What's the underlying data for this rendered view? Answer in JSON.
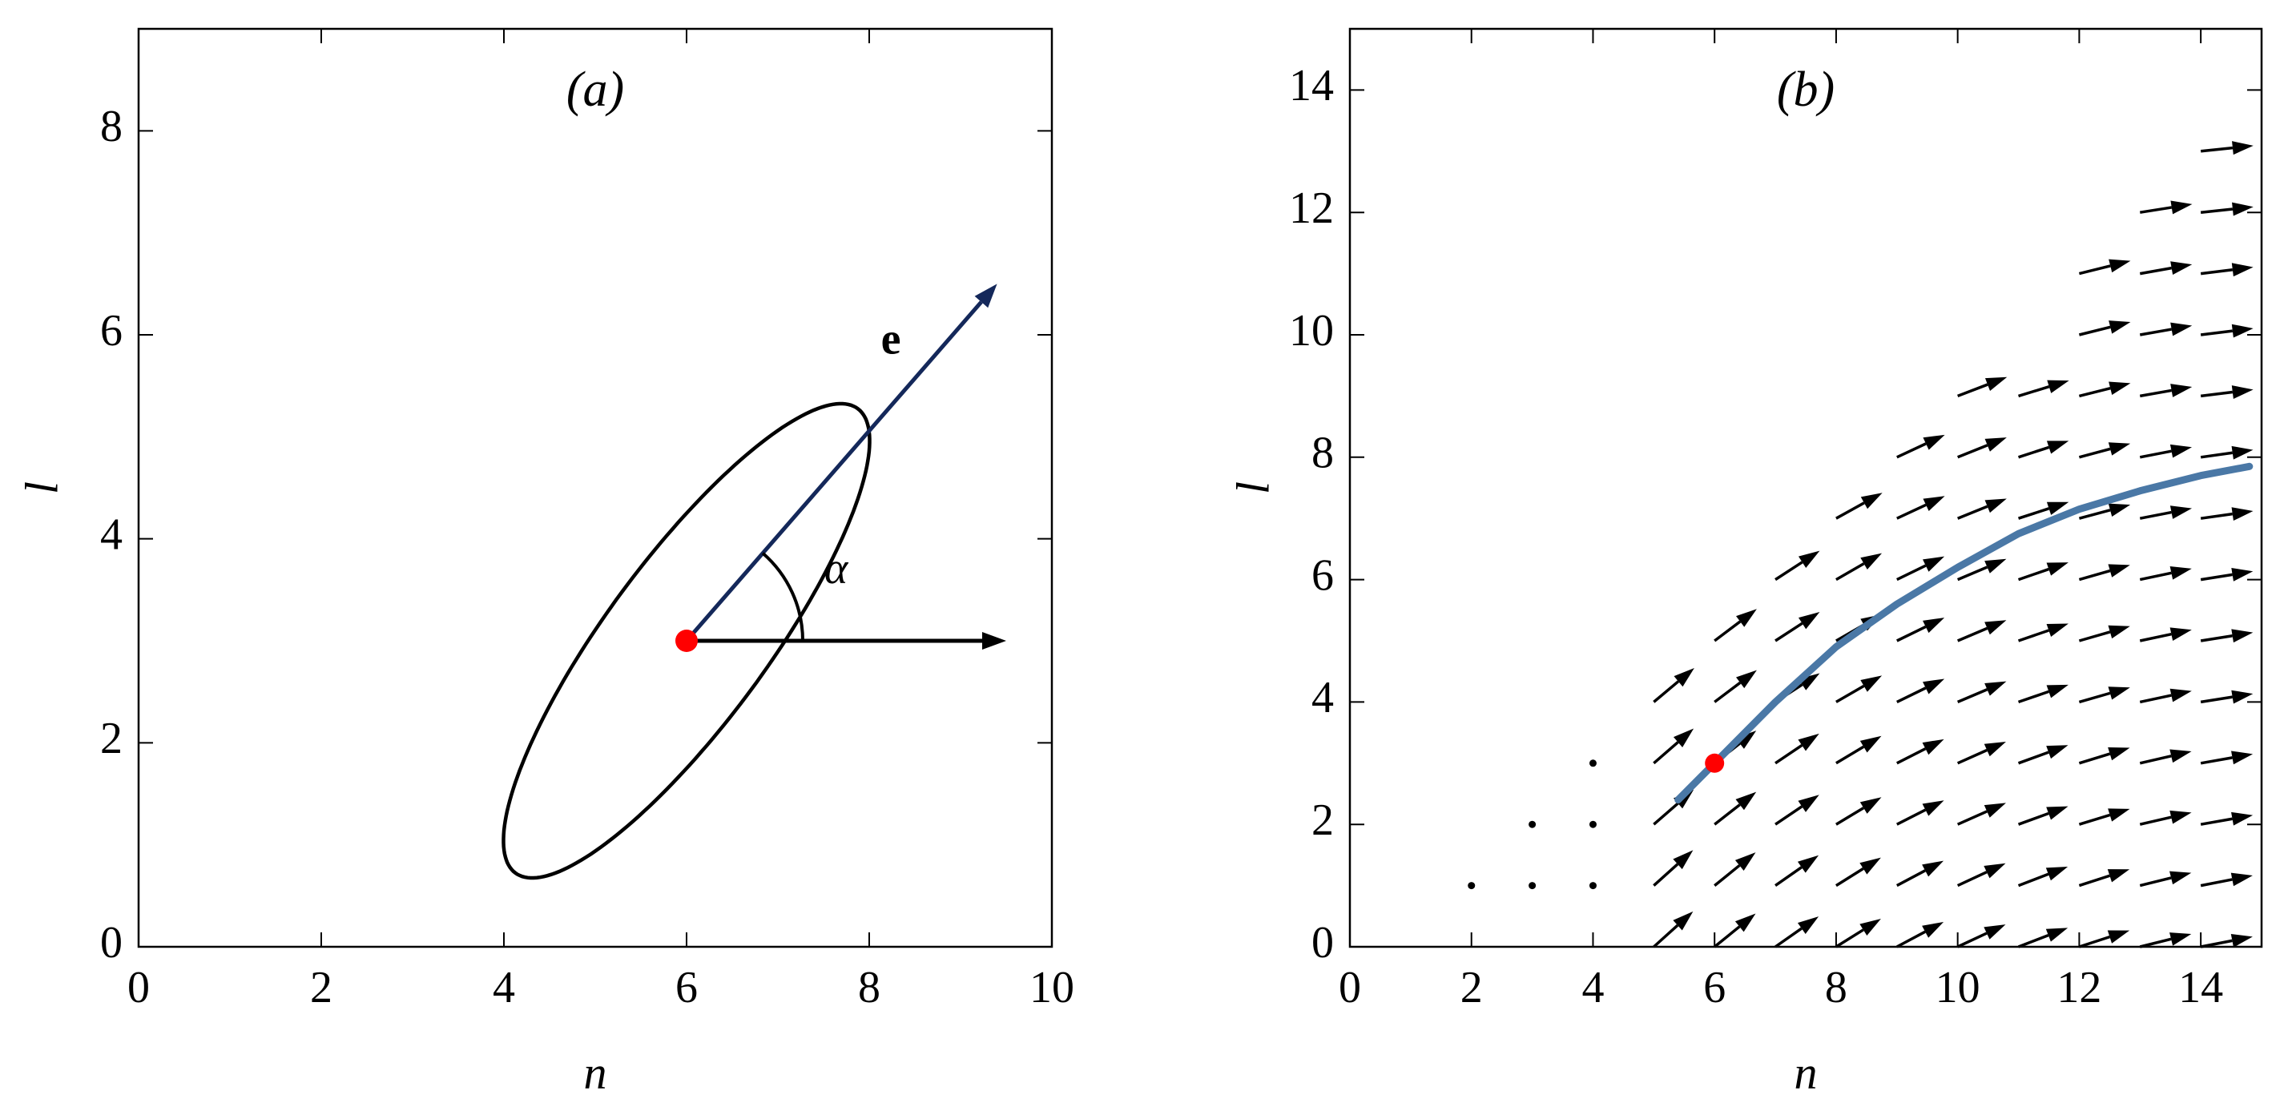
{
  "chart_data": [
    {
      "type": "ellipse",
      "title": "(a)",
      "x_label": "n",
      "y_label": "l",
      "xlim": [
        0,
        10
      ],
      "ylim": [
        0,
        9
      ],
      "xticks": [
        0,
        2,
        4,
        6,
        8,
        10
      ],
      "yticks": [
        0,
        2,
        4,
        6,
        8
      ],
      "ellipse": {
        "center": [
          6,
          3
        ],
        "semi_axes": [
          2.95,
          0.85
        ],
        "angle": 50,
        "color": "#000000"
      },
      "point": {
        "x": 6,
        "y": 3,
        "color": "#ff0000"
      },
      "vectors": [
        {
          "name": "e",
          "to": [
            9.4,
            6.5
          ],
          "color": "#14285a"
        },
        {
          "to": [
            9.5,
            3
          ],
          "color": "#000000"
        }
      ],
      "angle_label": "α"
    },
    {
      "type": "quiver",
      "title": "(b)",
      "x_label": "n",
      "y_label": "l",
      "xlim": [
        0,
        15
      ],
      "ylim": [
        0,
        15
      ],
      "xticks": [
        0,
        2,
        4,
        6,
        8,
        10,
        12,
        14
      ],
      "yticks": [
        0,
        2,
        4,
        6,
        8,
        10,
        12,
        14
      ],
      "arrow_color": "#000000",
      "arrows": [
        {
          "l": 0,
          "n": [
            5,
            6,
            7,
            8,
            9,
            10,
            11,
            12,
            13,
            14
          ],
          "angle": [
            42,
            39,
            35,
            32,
            28,
            25,
            21,
            18,
            14,
            11
          ]
        },
        {
          "l": 1,
          "n": [
            5,
            6,
            7,
            8,
            9,
            10,
            11,
            12,
            13,
            14
          ],
          "angle": [
            42,
            39,
            35,
            32,
            28,
            25,
            21,
            18,
            14,
            11
          ]
        },
        {
          "l": 2,
          "n": [
            5,
            6,
            7,
            8,
            9,
            10,
            11,
            12,
            13,
            14
          ],
          "angle": [
            41,
            38,
            34,
            31,
            27,
            24,
            20,
            17,
            13,
            10
          ]
        },
        {
          "l": 3,
          "n": [
            5,
            6,
            7,
            8,
            9,
            10,
            11,
            12,
            13,
            14
          ],
          "angle": [
            41,
            38,
            34,
            31,
            27,
            24,
            20,
            17,
            13,
            10
          ]
        },
        {
          "l": 4,
          "n": [
            5,
            6,
            7,
            8,
            9,
            10,
            11,
            12,
            13,
            14
          ],
          "angle": [
            40,
            37,
            33,
            30,
            26,
            23,
            19,
            16,
            12,
            9
          ]
        },
        {
          "l": 5,
          "n": [
            6,
            7,
            8,
            9,
            10,
            11,
            12,
            13,
            14
          ],
          "angle": [
            37,
            33,
            30,
            26,
            23,
            19,
            16,
            12,
            9
          ]
        },
        {
          "l": 6,
          "n": [
            7,
            8,
            9,
            10,
            11,
            12,
            13,
            14
          ],
          "angle": [
            33,
            30,
            26,
            23,
            19,
            16,
            12,
            9
          ]
        },
        {
          "l": 7,
          "n": [
            8,
            9,
            10,
            11,
            12,
            13,
            14
          ],
          "angle": [
            29,
            25,
            22,
            18,
            15,
            11,
            8
          ]
        },
        {
          "l": 8,
          "n": [
            9,
            10,
            11,
            12,
            13,
            14
          ],
          "angle": [
            25,
            22,
            18,
            15,
            11,
            8
          ]
        },
        {
          "l": 9,
          "n": [
            10,
            11,
            12,
            13,
            14
          ],
          "angle": [
            21,
            17,
            14,
            10,
            7
          ]
        },
        {
          "l": 10,
          "n": [
            12,
            13,
            14
          ],
          "angle": [
            14,
            10,
            7
          ]
        },
        {
          "l": 11,
          "n": [
            12,
            13,
            14
          ],
          "angle": [
            14,
            10,
            7
          ]
        },
        {
          "l": 12,
          "n": [
            13,
            14
          ],
          "angle": [
            9,
            6
          ]
        },
        {
          "l": 13,
          "n": [
            14
          ],
          "angle": [
            6
          ]
        }
      ],
      "dots": {
        "n": [
          2,
          3,
          4,
          3,
          4,
          4
        ],
        "l": [
          1,
          1,
          1,
          2,
          2,
          3
        ]
      },
      "curve": {
        "x": [
          5.4,
          6,
          7,
          8,
          9,
          10,
          11,
          12,
          13,
          14,
          14.8
        ],
        "y": [
          2.4,
          3,
          4,
          4.9,
          5.6,
          6.2,
          6.75,
          7.15,
          7.45,
          7.7,
          7.85
        ],
        "color": "#4a78a6"
      },
      "point": {
        "x": 6,
        "y": 3,
        "color": "#ff0000"
      }
    }
  ]
}
